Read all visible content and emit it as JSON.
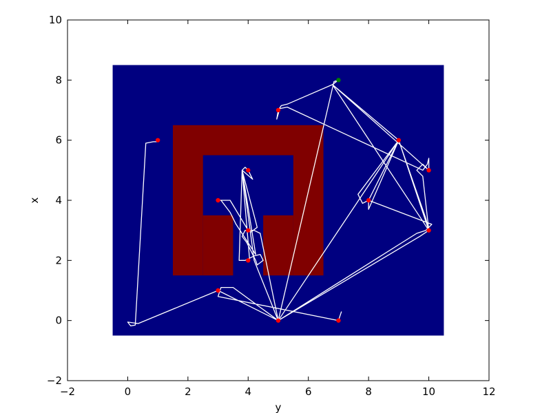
{
  "chart_data": {
    "type": "scatter",
    "title": "",
    "xlabel": "y",
    "ylabel": "x",
    "xlim": [
      -2,
      12
    ],
    "ylim": [
      -2,
      10
    ],
    "xticks": [
      -2,
      0,
      2,
      4,
      6,
      8,
      10,
      12
    ],
    "yticks": [
      -2,
      0,
      2,
      4,
      6,
      8,
      10
    ],
    "xtick_labels": [
      "−2",
      "0",
      "2",
      "4",
      "6",
      "8",
      "10",
      "12"
    ],
    "ytick_labels": [
      "−2",
      "0",
      "2",
      "4",
      "6",
      "8",
      "10"
    ],
    "grid": false,
    "legend": "none",
    "colors": {
      "background_region": "#000080",
      "obstacle": "#800000",
      "path": "#ffffff",
      "waypoint": "#ff0000",
      "start_point": "#008000",
      "frame": "#000000"
    },
    "regions": [
      {
        "name": "workspace",
        "y": [
          -0.5,
          10.5
        ],
        "x": [
          -0.5,
          8.5
        ]
      },
      {
        "name": "obstacle-top-bar",
        "y": [
          1.5,
          6.5
        ],
        "x": [
          5.5,
          6.5
        ]
      },
      {
        "name": "obstacle-left-column",
        "y": [
          1.5,
          2.5
        ],
        "x": [
          1.5,
          5.5
        ]
      },
      {
        "name": "obstacle-right-column",
        "y": [
          5.5,
          6.5
        ],
        "x": [
          1.5,
          5.5
        ]
      },
      {
        "name": "obstacle-left-foot",
        "y": [
          2.5,
          3.5
        ],
        "x": [
          1.5,
          3.5
        ]
      },
      {
        "name": "obstacle-right-foot",
        "y": [
          4.5,
          5.5
        ],
        "x": [
          1.5,
          3.5
        ]
      }
    ],
    "waypoints": [
      {
        "y": 1,
        "x": 6
      },
      {
        "y": 3,
        "x": 4
      },
      {
        "y": 4,
        "x": 5
      },
      {
        "y": 4,
        "x": 3
      },
      {
        "y": 4,
        "x": 2
      },
      {
        "y": 3,
        "x": 1
      },
      {
        "y": 5,
        "x": 0
      },
      {
        "y": 7,
        "x": 0
      },
      {
        "y": 5,
        "x": 7
      },
      {
        "y": 9,
        "x": 6
      },
      {
        "y": 10,
        "x": 5
      },
      {
        "y": 8,
        "x": 4
      },
      {
        "y": 10,
        "x": 3
      }
    ],
    "start_points": [
      {
        "y": 7,
        "x": 8
      }
    ],
    "path": [
      [
        1.02,
        5.95
      ],
      [
        0.85,
        5.95
      ],
      [
        0.6,
        5.9
      ],
      [
        0.25,
        -0.15
      ],
      [
        0.1,
        -0.18
      ],
      [
        0.0,
        -0.05
      ],
      [
        0.35,
        -0.1
      ],
      [
        3.0,
        1.0
      ],
      [
        5.0,
        0.0
      ],
      [
        6.85,
        7.95
      ],
      [
        7.0,
        8.0
      ],
      [
        6.8,
        7.85
      ],
      [
        10.0,
        5.0
      ],
      [
        6.8,
        7.85
      ],
      [
        9.0,
        6.0
      ],
      [
        6.8,
        7.85
      ],
      [
        10.0,
        3.0
      ],
      [
        6.8,
        7.85
      ],
      [
        5.3,
        7.2
      ],
      [
        5.1,
        7.15
      ],
      [
        5.0,
        7.0
      ],
      [
        4.95,
        6.7
      ],
      [
        4.95,
        6.7
      ],
      [
        5.05,
        7.05
      ],
      [
        5.3,
        7.1
      ],
      [
        9.8,
        5.0
      ],
      [
        9.95,
        5.2
      ],
      [
        10.0,
        5.4
      ],
      [
        10.0,
        5.0
      ],
      [
        9.8,
        5.2
      ],
      [
        9.6,
        5.0
      ],
      [
        9.8,
        4.8
      ],
      [
        10.0,
        3.0
      ],
      [
        9.9,
        3.4
      ],
      [
        9.0,
        6.0
      ],
      [
        8.0,
        4.0
      ],
      [
        7.8,
        3.9
      ],
      [
        7.65,
        4.2
      ],
      [
        9.0,
        6.0
      ],
      [
        8.0,
        3.7
      ],
      [
        8.0,
        4.0
      ],
      [
        10.1,
        3.2
      ],
      [
        9.9,
        3.0
      ],
      [
        9.6,
        2.9
      ],
      [
        5.0,
        0.0
      ],
      [
        9.0,
        6.0
      ],
      [
        10.0,
        3.0
      ],
      [
        9.7,
        2.8
      ],
      [
        5.0,
        0.0
      ],
      [
        4.2,
        2.0
      ],
      [
        3.8,
        5.0
      ],
      [
        3.9,
        5.1
      ],
      [
        4.0,
        5.0
      ],
      [
        4.15,
        4.7
      ],
      [
        3.8,
        5.0
      ],
      [
        4.25,
        3.3
      ],
      [
        4.3,
        3.1
      ],
      [
        4.1,
        2.95
      ],
      [
        3.9,
        3.0
      ],
      [
        3.8,
        2.8
      ],
      [
        3.95,
        2.6
      ],
      [
        4.25,
        2.0
      ],
      [
        4.3,
        1.85
      ],
      [
        4.5,
        2.0
      ],
      [
        4.4,
        2.2
      ],
      [
        4.2,
        2.15
      ],
      [
        3.9,
        2.0
      ],
      [
        3.7,
        2.0
      ],
      [
        3.8,
        5.0
      ],
      [
        4.05,
        2.0
      ],
      [
        3.8,
        5.0
      ],
      [
        4.25,
        2.2
      ],
      [
        3.6,
        3.2
      ],
      [
        3.4,
        3.6
      ],
      [
        3.1,
        4.0
      ],
      [
        3.0,
        4.0
      ],
      [
        3.4,
        4.0
      ],
      [
        4.0,
        3.0
      ],
      [
        4.2,
        3.0
      ],
      [
        4.4,
        2.9
      ],
      [
        5.0,
        0.0
      ],
      [
        3.5,
        1.1
      ],
      [
        3.1,
        1.1
      ],
      [
        3.0,
        0.8
      ],
      [
        7.0,
        0.0
      ],
      [
        7.1,
        0.3
      ]
    ]
  }
}
